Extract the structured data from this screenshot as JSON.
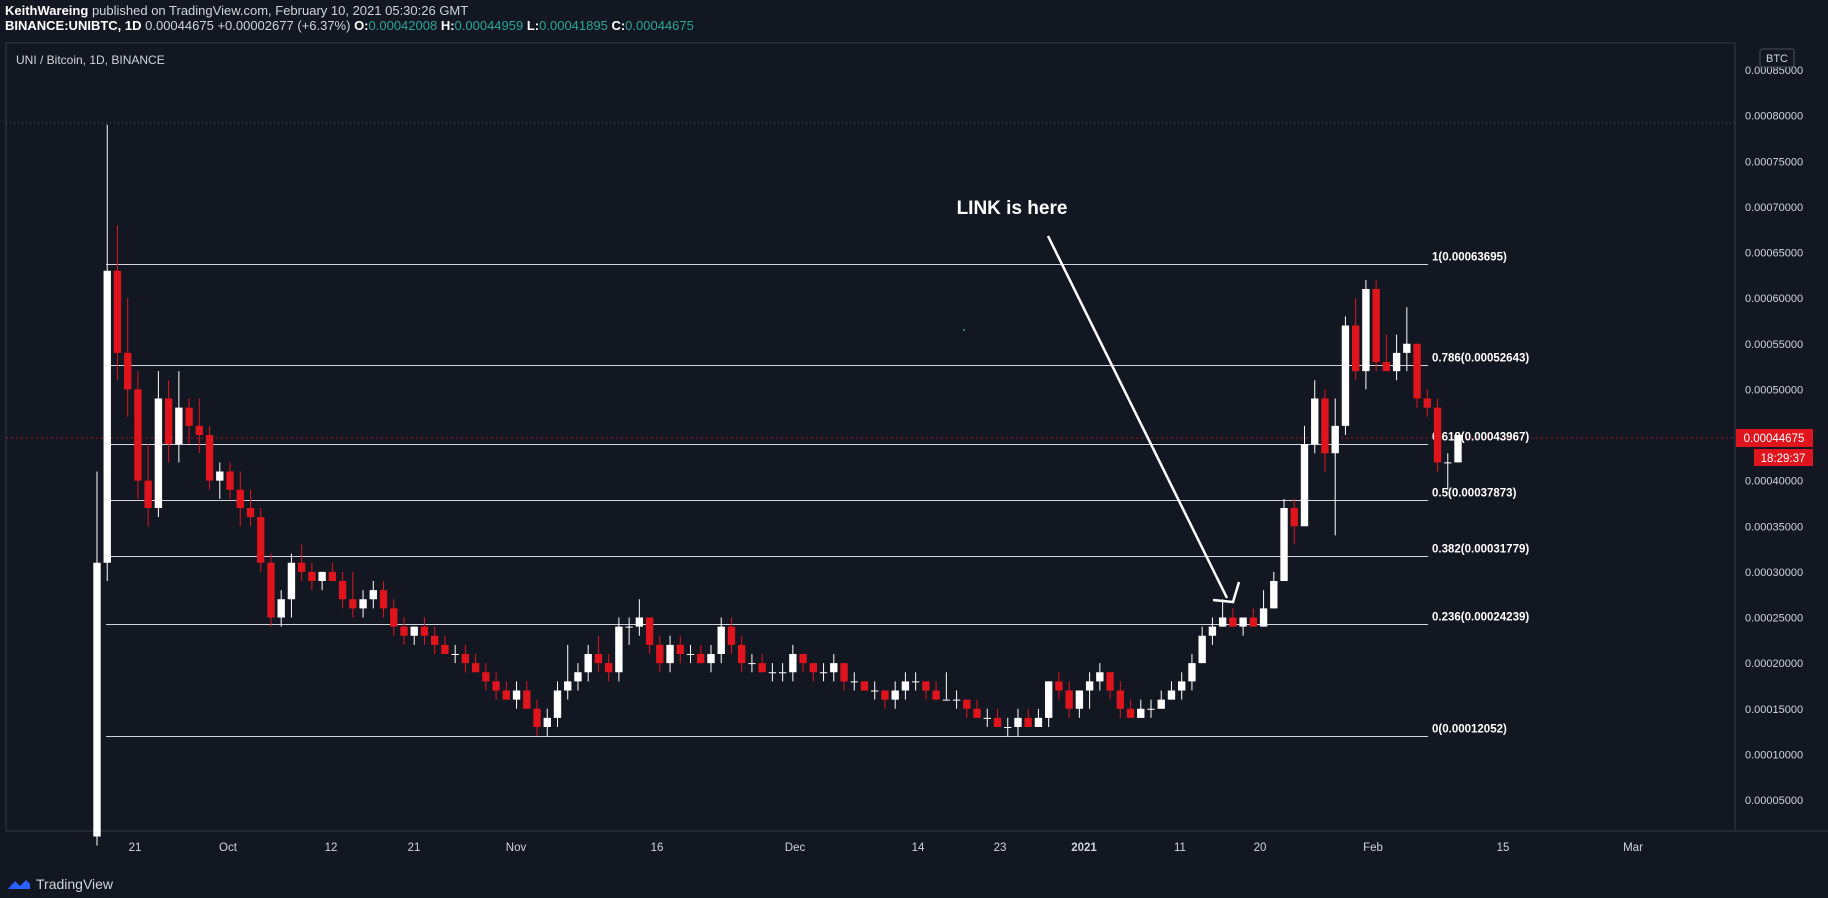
{
  "header": {
    "author": "KeithWareing",
    "published": "published on TradingView.com, February 10, 2021 05:30:26 GMT",
    "symbol": "BINANCE:UNIBTC, 1D",
    "last": "0.00044675",
    "change": "+0.00002677 (+6.37%)",
    "o_label": "O:",
    "o": "0.00042008",
    "h_label": "H:",
    "h": "0.00044959",
    "l_label": "L:",
    "l": "0.00041895",
    "c_label": "C:",
    "c": "0.00044675"
  },
  "pane_title": "UNI / Bitcoin, 1D, BINANCE",
  "currency_badge": "BTC",
  "annotation": "LINK is here",
  "price_label": "0.00044675",
  "countdown": "18:29:37",
  "watermark": "TradingView",
  "colors": {
    "up": "#ffffff",
    "down": "#e0141d",
    "bg": "#131722",
    "grid_text": "#d1d4dc",
    "price_tag": "#e0141d"
  },
  "chart_data": {
    "type": "candlestick",
    "y_ticks": [
      "0.00085000",
      "0.00080000",
      "0.00075000",
      "0.00070000",
      "0.00065000",
      "0.00060000",
      "0.00055000",
      "0.00050000",
      "0.00045000",
      "0.00040000",
      "0.00035000",
      "0.00030000",
      "0.00025000",
      "0.00020000",
      "0.00015000",
      "0.00010000",
      "0.00005000"
    ],
    "ylim": [
      2e-05,
      0.00088
    ],
    "x_ticks": [
      "21",
      "Oct",
      "12",
      "21",
      "Nov",
      "16",
      "Dec",
      "14",
      "23",
      "2021",
      "11",
      "20",
      "Feb",
      "15",
      "Mar"
    ],
    "fib_levels": [
      {
        "label": "1(0.00063695)",
        "value": 0.00063695
      },
      {
        "label": "0.786(0.00052643)",
        "value": 0.00052643
      },
      {
        "label": "0.618(0.00043967)",
        "value": 0.00043967
      },
      {
        "label": "0.5(0.00037873)",
        "value": 0.00037873
      },
      {
        "label": "0.382(0.00031779)",
        "value": 0.00031779
      },
      {
        "label": "0.236(0.00024239)",
        "value": 0.00024239
      },
      {
        "label": "0(0.00012052)",
        "value": 0.00012052
      }
    ],
    "candles": [
      [
        1e-05,
        0.00041,
        0.0,
        0.00031
      ],
      [
        0.00031,
        0.00079,
        0.00029,
        0.00063
      ],
      [
        0.00063,
        0.00068,
        0.00051,
        0.00054
      ],
      [
        0.00054,
        0.0006,
        0.00047,
        0.0005
      ],
      [
        0.0005,
        0.00052,
        0.00038,
        0.0004
      ],
      [
        0.0004,
        0.00044,
        0.00035,
        0.00037
      ],
      [
        0.00037,
        0.00052,
        0.00036,
        0.00049
      ],
      [
        0.00049,
        0.00051,
        0.00042,
        0.00044
      ],
      [
        0.00044,
        0.00052,
        0.00042,
        0.00048
      ],
      [
        0.00048,
        0.00049,
        0.00044,
        0.00046
      ],
      [
        0.00046,
        0.00049,
        0.00043,
        0.00045
      ],
      [
        0.00045,
        0.00046,
        0.00039,
        0.0004
      ],
      [
        0.0004,
        0.00042,
        0.00038,
        0.00041
      ],
      [
        0.00041,
        0.00042,
        0.00038,
        0.00039
      ],
      [
        0.00039,
        0.00041,
        0.00035,
        0.00037
      ],
      [
        0.00037,
        0.00039,
        0.00035,
        0.00036
      ],
      [
        0.00036,
        0.00037,
        0.0003,
        0.00031
      ],
      [
        0.00031,
        0.00032,
        0.00024,
        0.00025
      ],
      [
        0.00025,
        0.00028,
        0.00024,
        0.00027
      ],
      [
        0.00027,
        0.00032,
        0.00025,
        0.00031
      ],
      [
        0.00031,
        0.00033,
        0.00029,
        0.0003
      ],
      [
        0.0003,
        0.00031,
        0.00028,
        0.00029
      ],
      [
        0.00029,
        0.0003,
        0.00028,
        0.0003
      ],
      [
        0.0003,
        0.00031,
        0.00029,
        0.00029
      ],
      [
        0.00029,
        0.0003,
        0.00026,
        0.00027
      ],
      [
        0.00027,
        0.0003,
        0.00025,
        0.00026
      ],
      [
        0.00026,
        0.00028,
        0.00025,
        0.00027
      ],
      [
        0.00027,
        0.00029,
        0.00026,
        0.00028
      ],
      [
        0.00028,
        0.00029,
        0.00025,
        0.00026
      ],
      [
        0.00026,
        0.00027,
        0.00023,
        0.00024
      ],
      [
        0.00024,
        0.00025,
        0.00022,
        0.00023
      ],
      [
        0.00023,
        0.00024,
        0.00022,
        0.00024
      ],
      [
        0.00024,
        0.00025,
        0.00022,
        0.00023
      ],
      [
        0.00023,
        0.00024,
        0.00021,
        0.00022
      ],
      [
        0.00022,
        0.00023,
        0.00021,
        0.00021
      ],
      [
        0.00021,
        0.00022,
        0.0002,
        0.00021
      ],
      [
        0.00021,
        0.00022,
        0.00019,
        0.0002
      ],
      [
        0.0002,
        0.00021,
        0.00019,
        0.00019
      ],
      [
        0.00019,
        0.0002,
        0.00017,
        0.00018
      ],
      [
        0.00018,
        0.00019,
        0.00016,
        0.00017
      ],
      [
        0.00017,
        0.00018,
        0.00016,
        0.00016
      ],
      [
        0.00016,
        0.00018,
        0.00015,
        0.00017
      ],
      [
        0.00017,
        0.00018,
        0.00015,
        0.00015
      ],
      [
        0.00015,
        0.00016,
        0.00012,
        0.00013
      ],
      [
        0.00013,
        0.00015,
        0.00012,
        0.00014
      ],
      [
        0.00014,
        0.00018,
        0.00013,
        0.00017
      ],
      [
        0.00017,
        0.00022,
        0.00016,
        0.00018
      ],
      [
        0.00018,
        0.0002,
        0.00017,
        0.00019
      ],
      [
        0.00019,
        0.00022,
        0.00018,
        0.00021
      ],
      [
        0.00021,
        0.00023,
        0.00019,
        0.0002
      ],
      [
        0.0002,
        0.00021,
        0.00018,
        0.00019
      ],
      [
        0.00019,
        0.00025,
        0.00018,
        0.00024
      ],
      [
        0.00024,
        0.00025,
        0.00022,
        0.00024
      ],
      [
        0.00024,
        0.00027,
        0.00023,
        0.00025
      ],
      [
        0.00025,
        0.00025,
        0.00021,
        0.00022
      ],
      [
        0.00022,
        0.00023,
        0.00019,
        0.0002
      ],
      [
        0.0002,
        0.00023,
        0.00019,
        0.00022
      ],
      [
        0.00022,
        0.00023,
        0.0002,
        0.00021
      ],
      [
        0.00021,
        0.00022,
        0.0002,
        0.00021
      ],
      [
        0.00021,
        0.00022,
        0.0002,
        0.0002
      ],
      [
        0.0002,
        0.00022,
        0.00019,
        0.00021
      ],
      [
        0.00021,
        0.00025,
        0.0002,
        0.00024
      ],
      [
        0.00024,
        0.00025,
        0.00021,
        0.00022
      ],
      [
        0.00022,
        0.00023,
        0.00019,
        0.0002
      ],
      [
        0.0002,
        0.00021,
        0.00019,
        0.0002
      ],
      [
        0.0002,
        0.00021,
        0.00019,
        0.00019
      ],
      [
        0.00019,
        0.0002,
        0.00018,
        0.00019
      ],
      [
        0.00019,
        0.0002,
        0.00018,
        0.00019
      ],
      [
        0.00019,
        0.00022,
        0.00018,
        0.00021
      ],
      [
        0.00021,
        0.00021,
        0.00019,
        0.0002
      ],
      [
        0.0002,
        0.0002,
        0.00018,
        0.00019
      ],
      [
        0.00019,
        0.0002,
        0.00018,
        0.00019
      ],
      [
        0.00019,
        0.00021,
        0.00018,
        0.0002
      ],
      [
        0.0002,
        0.0002,
        0.00017,
        0.00018
      ],
      [
        0.00018,
        0.00019,
        0.00017,
        0.00018
      ],
      [
        0.00018,
        0.00018,
        0.00017,
        0.00017
      ],
      [
        0.00017,
        0.00018,
        0.00016,
        0.00017
      ],
      [
        0.00017,
        0.00017,
        0.00015,
        0.00016
      ],
      [
        0.00016,
        0.00018,
        0.00015,
        0.00017
      ],
      [
        0.00017,
        0.00019,
        0.00016,
        0.00018
      ],
      [
        0.00018,
        0.00019,
        0.00017,
        0.00018
      ],
      [
        0.00018,
        0.00018,
        0.00016,
        0.00017
      ],
      [
        0.00017,
        0.00018,
        0.00016,
        0.00016
      ],
      [
        0.00016,
        0.00019,
        0.00016,
        0.00016
      ],
      [
        0.00016,
        0.00017,
        0.00015,
        0.00016
      ],
      [
        0.00016,
        0.00016,
        0.00014,
        0.00015
      ],
      [
        0.00015,
        0.00016,
        0.00014,
        0.00014
      ],
      [
        0.00014,
        0.00015,
        0.00013,
        0.00014
      ],
      [
        0.00014,
        0.00015,
        0.00013,
        0.00013
      ],
      [
        0.00013,
        0.00014,
        0.00012,
        0.00013
      ],
      [
        0.00013,
        0.00015,
        0.00012,
        0.00014
      ],
      [
        0.00014,
        0.00015,
        0.00013,
        0.00013
      ],
      [
        0.00013,
        0.00015,
        0.00013,
        0.00014
      ],
      [
        0.00014,
        0.00018,
        0.00013,
        0.00018
      ],
      [
        0.00018,
        0.00019,
        0.00016,
        0.00017
      ],
      [
        0.00017,
        0.00018,
        0.00014,
        0.00015
      ],
      [
        0.00015,
        0.00017,
        0.00014,
        0.00017
      ],
      [
        0.00017,
        0.00019,
        0.00015,
        0.00018
      ],
      [
        0.00018,
        0.0002,
        0.00017,
        0.00019
      ],
      [
        0.00019,
        0.00019,
        0.00016,
        0.00017
      ],
      [
        0.00017,
        0.00018,
        0.00014,
        0.00015
      ],
      [
        0.00015,
        0.00016,
        0.00014,
        0.00014
      ],
      [
        0.00014,
        0.00016,
        0.00014,
        0.00015
      ],
      [
        0.00015,
        0.00016,
        0.00014,
        0.00015
      ],
      [
        0.00015,
        0.00017,
        0.00015,
        0.00016
      ],
      [
        0.00016,
        0.00018,
        0.00016,
        0.00017
      ],
      [
        0.00017,
        0.00019,
        0.00016,
        0.00018
      ],
      [
        0.00018,
        0.00021,
        0.00017,
        0.0002
      ],
      [
        0.0002,
        0.00024,
        0.0002,
        0.00023
      ],
      [
        0.00023,
        0.00025,
        0.00022,
        0.00024
      ],
      [
        0.00024,
        0.00027,
        0.00024,
        0.00025
      ],
      [
        0.00025,
        0.00026,
        0.00024,
        0.00024
      ],
      [
        0.00024,
        0.00025,
        0.00023,
        0.00025
      ],
      [
        0.00025,
        0.00026,
        0.00024,
        0.00024
      ],
      [
        0.00024,
        0.00028,
        0.00024,
        0.00026
      ],
      [
        0.00026,
        0.0003,
        0.00026,
        0.00029
      ],
      [
        0.00029,
        0.00038,
        0.00029,
        0.00037
      ],
      [
        0.00037,
        0.00038,
        0.00033,
        0.00035
      ],
      [
        0.00035,
        0.00046,
        0.00035,
        0.00044
      ],
      [
        0.00044,
        0.00051,
        0.00043,
        0.00049
      ],
      [
        0.00049,
        0.0005,
        0.00041,
        0.00043
      ],
      [
        0.00043,
        0.00049,
        0.00034,
        0.00046
      ],
      [
        0.00046,
        0.00058,
        0.00045,
        0.00057
      ],
      [
        0.00057,
        0.0006,
        0.00051,
        0.00052
      ],
      [
        0.00052,
        0.00062,
        0.0005,
        0.00061
      ],
      [
        0.00061,
        0.00062,
        0.00052,
        0.00053
      ],
      [
        0.00053,
        0.00056,
        0.00052,
        0.00052
      ],
      [
        0.00052,
        0.00056,
        0.00051,
        0.00054
      ],
      [
        0.00054,
        0.00059,
        0.00052,
        0.00055
      ],
      [
        0.00055,
        0.00055,
        0.00048,
        0.00049
      ],
      [
        0.00049,
        0.0005,
        0.00047,
        0.00048
      ],
      [
        0.00048,
        0.00049,
        0.00041,
        0.00042
      ],
      [
        0.00042,
        0.00043,
        0.00039,
        0.00042
      ],
      [
        0.00042,
        0.00045,
        0.00042,
        0.00045
      ]
    ]
  }
}
